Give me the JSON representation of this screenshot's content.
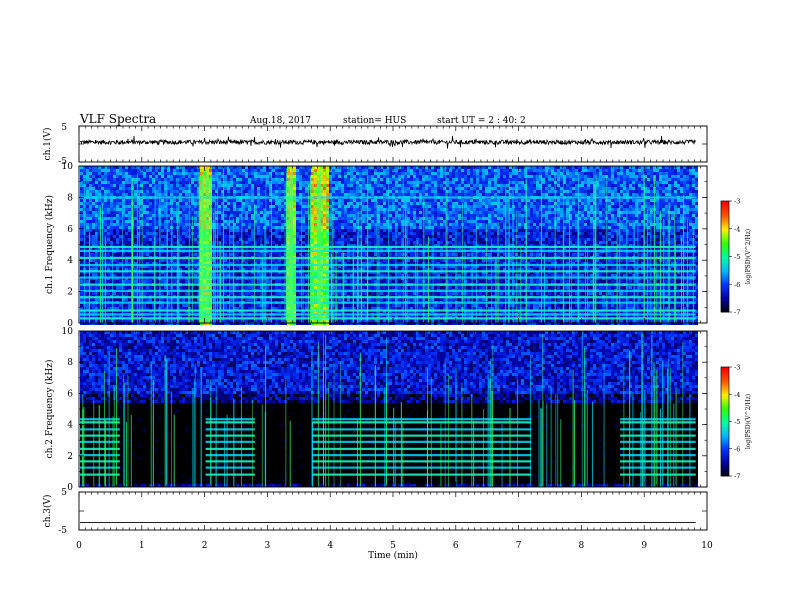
{
  "header": {
    "title": "VLF Spectra",
    "date": "Aug.18, 2017",
    "station": "station= HUS",
    "start_ut": "start  UT  =   2  : 40: 2"
  },
  "chart_data": [
    {
      "type": "line",
      "id": "ch1_waveform",
      "ylabel": "ch.1(V)",
      "ylim": [
        -5,
        5
      ],
      "yticks": [
        "5",
        "-5"
      ],
      "x_range_min": [
        0,
        9.82
      ],
      "baseline_value": 0.5,
      "noise_amplitude": 0.6
    },
    {
      "type": "heatmap",
      "id": "ch1_spectrogram",
      "ylabel": "ch.1 Frequency (kHz)",
      "ylim_khz": [
        0,
        10
      ],
      "yticks": [
        "0",
        "2",
        "4",
        "6",
        "8",
        "10"
      ],
      "color_scale": "log(PSD)(V^2/Hz)",
      "color_range": [
        -7,
        -3
      ],
      "color_ticks": [
        "-3",
        "-4",
        "-5",
        "-6",
        "-7"
      ],
      "horizontal_lines_khz": [
        0.3,
        0.55,
        0.8,
        1.3,
        1.65,
        2.05,
        2.45,
        2.9,
        3.3,
        3.7,
        4.15,
        4.6,
        4.85,
        8.0
      ],
      "broadband_bursts_min": [
        [
          1.9,
          2.1
        ],
        [
          3.3,
          3.45
        ],
        [
          3.65,
          3.95
        ]
      ],
      "background_level": -6.2
    },
    {
      "type": "heatmap",
      "id": "ch2_spectrogram",
      "ylabel": "ch.2 Frequency (kHz)",
      "ylim_khz": [
        0,
        10
      ],
      "yticks": [
        "0",
        "2",
        "4",
        "6",
        "8",
        "10"
      ],
      "color_scale": "log(PSD)(V^2/Hz)",
      "color_range": [
        -7,
        -3
      ],
      "color_ticks": [
        "-3",
        "-4",
        "-5",
        "-6",
        "-7"
      ],
      "horizontal_lines_khz": [
        0.8,
        1.25,
        1.65,
        2.05,
        2.45,
        2.9,
        3.3,
        3.7,
        4.15,
        4.35
      ],
      "line_segments_min": [
        [
          0.0,
          0.65
        ],
        [
          2.0,
          2.8
        ],
        [
          3.7,
          7.2
        ],
        [
          8.6,
          9.82
        ]
      ],
      "background_level": -6.6
    },
    {
      "type": "line",
      "id": "ch3_waveform",
      "ylabel": "ch.3(V)",
      "ylim": [
        -5,
        5
      ],
      "yticks": [
        "5",
        "0",
        "-5"
      ],
      "x_range_min": [
        0,
        9.82
      ],
      "baseline_value": -3.0
    }
  ],
  "xaxis": {
    "label": "Time  (min)",
    "xlim": [
      0,
      10
    ],
    "ticks": [
      "0",
      "1",
      "2",
      "3",
      "4",
      "5",
      "6",
      "7",
      "8",
      "9",
      "10"
    ]
  },
  "colors": {
    "colormap": [
      "#000000",
      "#0000a0",
      "#0033ff",
      "#00b8ff",
      "#00ffa0",
      "#33ff00",
      "#ffee00",
      "#ff5500",
      "#ff0000",
      "#ffffff"
    ]
  }
}
